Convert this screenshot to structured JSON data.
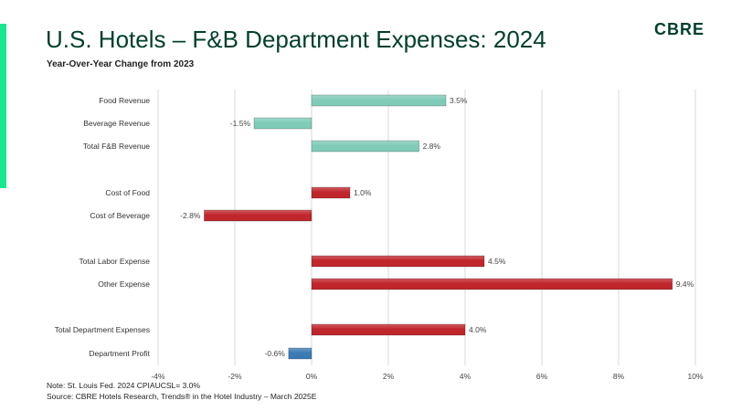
{
  "header": {
    "title": "U.S. Hotels – F&B Department Expenses: 2024",
    "subtitle": "Year-Over-Year Change from 2023",
    "logo": "CBRE"
  },
  "footer": {
    "note": "Note: St. Louis Fed. 2024 CPIAUCSL= 3.0%",
    "source": "Source: CBRE Hotels Research, Trends® in the Hotel Industry – March 2025E"
  },
  "colors": {
    "brand_green": "#003f2d",
    "accent_green": "#17e88f",
    "revenue_teal": "#7fcbb8",
    "expense_red": "#c0262c",
    "profit_blue": "#3b7ab5",
    "grid": "#d9d9d9"
  },
  "chart_data": {
    "type": "bar",
    "orientation": "horizontal",
    "categories": [
      "Food Revenue",
      "Beverage Revenue",
      "Total F&B Revenue",
      "Cost of Food",
      "Cost of Beverage",
      "Total Labor Expense",
      "Other Expense",
      "Total Department Expenses",
      "Department Profit"
    ],
    "values": [
      3.5,
      -1.5,
      2.8,
      1.0,
      -2.8,
      4.5,
      9.4,
      4.0,
      -0.6
    ],
    "value_labels": [
      "3.5%",
      "-1.5%",
      "2.8%",
      "1.0%",
      "-2.8%",
      "4.5%",
      "9.4%",
      "4.0%",
      "-0.6%"
    ],
    "groups": [
      "revenue",
      "revenue",
      "revenue",
      "expense",
      "expense",
      "expense",
      "expense",
      "expense",
      "profit"
    ],
    "xlim": [
      -4,
      10
    ],
    "xticks": [
      -4,
      -2,
      0,
      2,
      4,
      6,
      8,
      10
    ],
    "xtick_labels": [
      "-4%",
      "-2%",
      "0%",
      "2%",
      "4%",
      "6%",
      "8%",
      "10%"
    ],
    "grid": true,
    "legend": "none"
  }
}
